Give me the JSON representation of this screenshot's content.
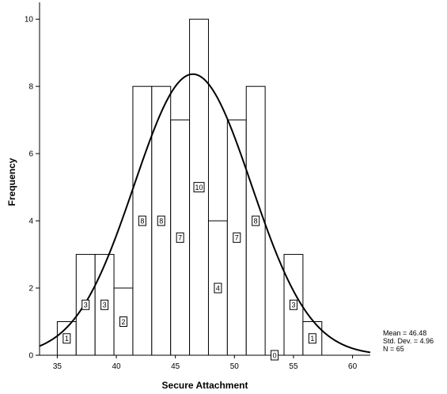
{
  "chart_data": {
    "type": "bar",
    "xlabel": "Secure Attachment",
    "ylabel": "Frequency",
    "xlim": [
      33.5,
      61.5
    ],
    "ylim": [
      0,
      10.5
    ],
    "x_ticks": [
      35,
      40,
      45,
      50,
      55,
      60
    ],
    "y_ticks": [
      0,
      2,
      4,
      6,
      8,
      10
    ],
    "bin_width": 1.6,
    "bins": [
      {
        "center": 35.8,
        "count": 1,
        "label": "1"
      },
      {
        "center": 37.4,
        "count": 3,
        "label": "3"
      },
      {
        "center": 39.0,
        "count": 3,
        "label": "3"
      },
      {
        "center": 40.6,
        "count": 2,
        "label": "2"
      },
      {
        "center": 42.2,
        "count": 8,
        "label": "8"
      },
      {
        "center": 43.8,
        "count": 8,
        "label": "8"
      },
      {
        "center": 45.4,
        "count": 7,
        "label": "7"
      },
      {
        "center": 47.0,
        "count": 10,
        "label": "10"
      },
      {
        "center": 48.6,
        "count": 4,
        "label": "4"
      },
      {
        "center": 50.2,
        "count": 7,
        "label": "7"
      },
      {
        "center": 51.8,
        "count": 8,
        "label": "8"
      },
      {
        "center": 53.4,
        "count": 0,
        "label": "0"
      },
      {
        "center": 55.0,
        "count": 3,
        "label": "3"
      },
      {
        "center": 56.6,
        "count": 1,
        "label": "1"
      }
    ],
    "normal_curve": {
      "mean": 46.48,
      "std": 4.96,
      "n": 65
    },
    "stats": [
      "Mean = 46.48",
      "Std. Dev. = 4.96",
      "N = 65"
    ],
    "grid": false,
    "legend": "none"
  }
}
